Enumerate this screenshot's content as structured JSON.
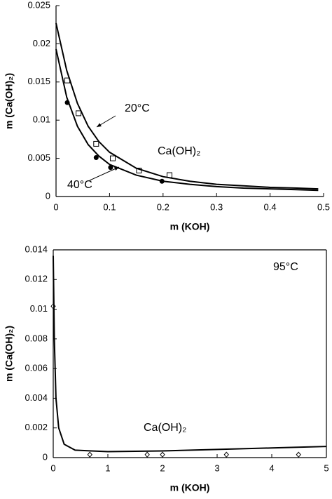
{
  "chart_data": [
    {
      "type": "scatter",
      "xlabel": "m (KOH)",
      "ylabel": "m (Ca(OH)₂)",
      "xlim": [
        0,
        0.5
      ],
      "xticks": [
        0,
        0.1,
        0.2,
        0.3,
        0.4,
        0.5
      ],
      "ylim": [
        0,
        0.025
      ],
      "yticks": [
        0,
        0.005,
        0.01,
        0.015,
        0.02,
        0.025
      ],
      "box": false,
      "annotations": [
        "20°C",
        "40°C",
        "Ca(OH)₂"
      ],
      "series": [
        {
          "color": "#000000",
          "marker": "square-open",
          "x": [
            0.021,
            0.042,
            0.075,
            0.106,
            0.155,
            0.212
          ],
          "values": [
            0.0152,
            0.0109,
            0.0069,
            0.005,
            0.0034,
            0.0028
          ]
        },
        {
          "color": "#000000",
          "marker": "circle-filled",
          "x": [
            0.021,
            0.075,
            0.102,
            0.198
          ],
          "values": [
            0.0123,
            0.0051,
            0.0038,
            0.002
          ]
        },
        {
          "color": "#000000",
          "marker": "line",
          "x": [
            0,
            0.02,
            0.04,
            0.06,
            0.08,
            0.1,
            0.15,
            0.2,
            0.25,
            0.3,
            0.35,
            0.4,
            0.45,
            0.49
          ],
          "values": [
            0.0227,
            0.0165,
            0.0122,
            0.0092,
            0.0072,
            0.0058,
            0.0037,
            0.0026,
            0.002,
            0.0016,
            0.0014,
            0.0012,
            0.0011,
            0.001
          ]
        },
        {
          "color": "#000000",
          "marker": "line",
          "x": [
            0,
            0.02,
            0.04,
            0.06,
            0.08,
            0.1,
            0.15,
            0.2,
            0.25,
            0.3,
            0.35,
            0.4,
            0.45,
            0.49
          ],
          "values": [
            0.0193,
            0.013,
            0.0092,
            0.0068,
            0.0053,
            0.0042,
            0.0028,
            0.002,
            0.0016,
            0.0013,
            0.0011,
            0.001,
            0.0009,
            0.0008
          ]
        }
      ]
    },
    {
      "type": "scatter",
      "xlabel": "m (KOH)",
      "ylabel": "m (Ca(OH)₂)",
      "xlim": [
        0,
        5
      ],
      "xticks": [
        0,
        1,
        2,
        3,
        4,
        5
      ],
      "ylim": [
        0,
        0.014
      ],
      "yticks": [
        0,
        0.002,
        0.004,
        0.006,
        0.008,
        0.01,
        0.012,
        0.014
      ],
      "box": true,
      "annotations": [
        "95°C",
        "Ca(OH)₂"
      ],
      "series": [
        {
          "color": "#000000",
          "marker": "diamond-open",
          "x": [
            0,
            0.67,
            1.72,
            2.0,
            3.17,
            4.49
          ],
          "values": [
            0.0102,
            0.0002,
            0.0002,
            0.0002,
            0.0002,
            0.0002
          ]
        },
        {
          "color": "#000000",
          "marker": "line",
          "x": [
            0,
            0.02,
            0.05,
            0.1,
            0.2,
            0.4,
            0.7,
            1,
            2,
            3,
            4,
            5
          ],
          "values": [
            0.0136,
            0.008,
            0.004,
            0.002,
            0.0009,
            0.0005,
            0.00045,
            0.0004,
            0.00045,
            0.00055,
            0.00065,
            0.00075
          ]
        }
      ]
    }
  ]
}
